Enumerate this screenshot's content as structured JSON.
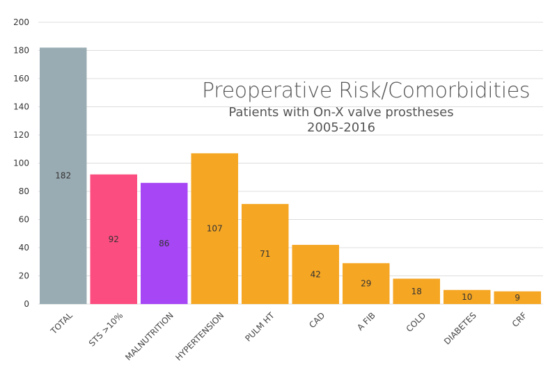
{
  "chart_data": {
    "type": "bar",
    "title": "Preoperative Risk/Comorbidities",
    "subtitle": "Patients with On-X valve prostheses",
    "subtitle2": "2005-2016",
    "categories": [
      "TOTAL",
      "STS >10%",
      "MALNUTRITION",
      "HYPERTENSION",
      "PULM HT",
      "CAD",
      "A FIB",
      "COLD",
      "DIABETES",
      "CRF"
    ],
    "values": [
      182,
      92,
      86,
      107,
      71,
      42,
      29,
      18,
      10,
      9
    ],
    "colors": [
      "#9aacb3",
      "#fc4d80",
      "#a646f4",
      "#f5a623",
      "#f5a623",
      "#f5a623",
      "#f5a623",
      "#f5a623",
      "#f5a623",
      "#f5a623"
    ],
    "ylim": [
      0,
      200
    ],
    "yticks": [
      0,
      20,
      40,
      60,
      80,
      100,
      120,
      140,
      160,
      180,
      200
    ],
    "grid": true,
    "data_labels": true
  }
}
